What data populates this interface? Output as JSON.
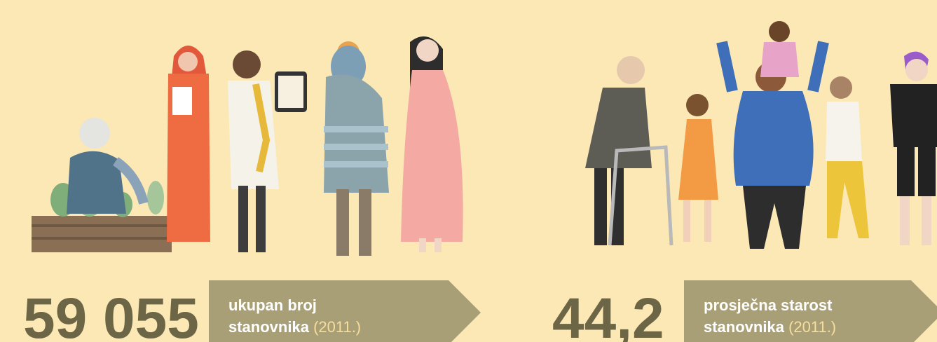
{
  "stats": [
    {
      "number": "59 055",
      "line1": "ukupan broj",
      "line2": "stanovnika",
      "year": "(2011.)"
    },
    {
      "number": "44,2",
      "line1": "prosječna starost",
      "line2": "stanovnika",
      "year": "(2011.)"
    }
  ]
}
